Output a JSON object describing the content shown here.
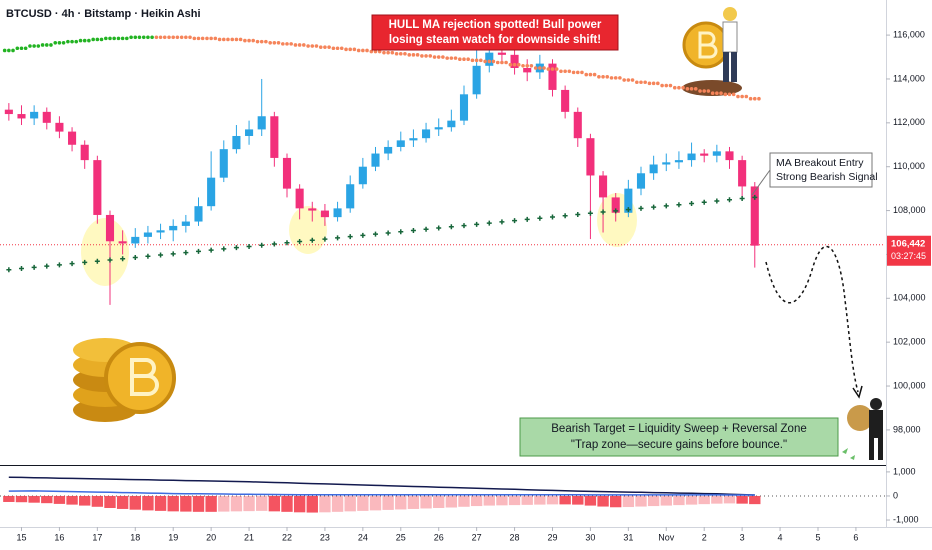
{
  "header": "BTCUSD · 4h · Bitstamp · Heikin Ashi",
  "chart_data": {
    "type": "candlestick",
    "x": [
      1,
      2,
      3,
      4,
      5,
      6,
      7,
      8,
      9,
      10,
      11,
      12,
      13,
      14,
      15,
      16,
      17,
      18,
      19,
      20,
      21,
      22,
      23,
      24,
      25,
      26,
      27,
      28,
      29,
      30,
      31,
      32,
      33,
      34,
      35,
      36,
      37,
      38,
      39,
      40,
      41,
      42,
      43,
      44,
      45,
      46,
      47,
      48,
      49,
      50,
      51,
      52,
      53,
      54,
      55,
      56,
      57,
      58,
      59,
      60
    ],
    "open": [
      112600,
      112400,
      112200,
      112500,
      112000,
      111600,
      111000,
      110300,
      107800,
      106600,
      106500,
      106800,
      107000,
      107100,
      107300,
      107500,
      108200,
      109500,
      110800,
      111400,
      111700,
      112300,
      110400,
      109000,
      108100,
      108000,
      107700,
      108100,
      109200,
      110000,
      110600,
      110900,
      111200,
      111300,
      111700,
      111800,
      112100,
      113300,
      114600,
      115200,
      115100,
      114500,
      114300,
      114700,
      113500,
      112500,
      111300,
      109600,
      108600,
      107900,
      109000,
      109700,
      110100,
      110200,
      110300,
      110600,
      110500,
      110700,
      110300,
      109100
    ],
    "high": [
      112900,
      112800,
      112800,
      112700,
      112300,
      111800,
      111200,
      110500,
      108000,
      107100,
      107200,
      107300,
      107400,
      107600,
      107800,
      108600,
      110700,
      111200,
      111900,
      112100,
      114000,
      112500,
      110600,
      109200,
      108400,
      108300,
      108400,
      109600,
      110400,
      110900,
      111200,
      111600,
      111700,
      112000,
      112200,
      112600,
      113700,
      115800,
      115700,
      115600,
      115400,
      114900,
      115100,
      114900,
      113700,
      112700,
      111500,
      109800,
      108800,
      109400,
      110000,
      110500,
      110600,
      110700,
      111100,
      110800,
      111000,
      110900,
      110500,
      109300
    ],
    "low": [
      112100,
      111900,
      111900,
      111700,
      111300,
      110700,
      109900,
      107400,
      103700,
      106000,
      106300,
      106500,
      106700,
      106600,
      107000,
      107300,
      108000,
      109300,
      110600,
      111000,
      111400,
      110000,
      108600,
      107600,
      107500,
      107300,
      107500,
      107900,
      109000,
      109800,
      110300,
      110700,
      110900,
      111100,
      111400,
      111600,
      111900,
      113100,
      114300,
      114700,
      114200,
      113900,
      114000,
      113200,
      112200,
      110900,
      106700,
      107000,
      107500,
      107700,
      108700,
      109400,
      109800,
      109900,
      110000,
      110200,
      110200,
      109900,
      108600,
      105400
    ],
    "close": [
      112400,
      112200,
      112500,
      112000,
      111600,
      111000,
      110300,
      107800,
      106600,
      106500,
      106800,
      107000,
      107100,
      107300,
      107500,
      108200,
      109500,
      110800,
      111400,
      111700,
      112300,
      110400,
      109000,
      108100,
      108000,
      107700,
      108100,
      109200,
      110000,
      110600,
      110900,
      111200,
      111300,
      111700,
      111800,
      112100,
      113300,
      114600,
      115200,
      115100,
      114500,
      114300,
      114700,
      113500,
      112500,
      111300,
      109600,
      108600,
      107900,
      109000,
      109700,
      110100,
      110200,
      110300,
      110600,
      110500,
      110700,
      110300,
      109100,
      106400
    ],
    "up_color": "#2aa4e4",
    "down_color": "#f2307b",
    "xlim": [
      0.3,
      70.3
    ],
    "xticks": [
      {
        "value": 2,
        "label": "15"
      },
      {
        "value": 5,
        "label": "16"
      },
      {
        "value": 8,
        "label": "17"
      },
      {
        "value": 11,
        "label": "18"
      },
      {
        "value": 14,
        "label": "19"
      },
      {
        "value": 17,
        "label": "20"
      },
      {
        "value": 20,
        "label": "21"
      },
      {
        "value": 23,
        "label": "22"
      },
      {
        "value": 26,
        "label": "23"
      },
      {
        "value": 29,
        "label": "24"
      },
      {
        "value": 32,
        "label": "25"
      },
      {
        "value": 35,
        "label": "26"
      },
      {
        "value": 38,
        "label": "27"
      },
      {
        "value": 41,
        "label": "28"
      },
      {
        "value": 44,
        "label": "29"
      },
      {
        "value": 47,
        "label": "30"
      },
      {
        "value": 50,
        "label": "31"
      },
      {
        "value": 53,
        "label": "Nov"
      },
      {
        "value": 56,
        "label": "2"
      },
      {
        "value": 59,
        "label": "3"
      },
      {
        "value": 62,
        "label": "4"
      },
      {
        "value": 65,
        "label": "5"
      },
      {
        "value": 68,
        "label": "6"
      }
    ],
    "ylim": [
      96400,
      117600
    ],
    "yticks": [
      {
        "value": 98000,
        "label": "98,000"
      },
      {
        "value": 100000,
        "label": "100,000"
      },
      {
        "value": 102000,
        "label": "102,000"
      },
      {
        "value": 104000,
        "label": "104,000"
      },
      {
        "value": 106000,
        "label": "106,000"
      },
      {
        "value": 108000,
        "label": "108,000"
      },
      {
        "value": 110000,
        "label": "110,000"
      },
      {
        "value": 112000,
        "label": "112,000"
      },
      {
        "value": 114000,
        "label": "114,000"
      },
      {
        "value": 116000,
        "label": "116,000"
      }
    ],
    "grid": false,
    "series": [
      {
        "color": "#22b322",
        "marker": "dot",
        "values": [
          115300,
          115400,
          115500,
          115550,
          115650,
          115700,
          115750,
          115800,
          115850,
          115850,
          115900,
          115900,
          null,
          null,
          null,
          null,
          null,
          null,
          null,
          null,
          null,
          null,
          null,
          null,
          null,
          null,
          null,
          null,
          null,
          null,
          null,
          null,
          null,
          null,
          null,
          null,
          null,
          null,
          null,
          null,
          null,
          null,
          null,
          null,
          null,
          null,
          null,
          null,
          null,
          null,
          null,
          null,
          null,
          null,
          null,
          null,
          null,
          null,
          null,
          null
        ]
      },
      {
        "color": "#f5845a",
        "marker": "dot",
        "values": [
          null,
          null,
          null,
          null,
          null,
          null,
          null,
          null,
          null,
          null,
          null,
          null,
          115900,
          115900,
          115900,
          115850,
          115850,
          115800,
          115800,
          115750,
          115700,
          115650,
          115600,
          115550,
          115500,
          115450,
          115400,
          115350,
          115300,
          115250,
          115200,
          115150,
          115100,
          115050,
          115000,
          114950,
          114900,
          114850,
          114800,
          114750,
          114650,
          114600,
          114500,
          114450,
          114350,
          114300,
          114200,
          114100,
          114050,
          113950,
          113850,
          113800,
          113700,
          113600,
          113550,
          113450,
          113350,
          113300,
          113200,
          113100
        ]
      },
      {
        "color": "#17663a",
        "marker": "cross",
        "values": [
          105300,
          105356,
          105412,
          105468,
          105524,
          105580,
          105636,
          105692,
          105748,
          105804,
          105860,
          105916,
          105972,
          106028,
          106084,
          106140,
          106196,
          106252,
          106308,
          106364,
          106420,
          106476,
          106532,
          106588,
          106644,
          106700,
          106756,
          106812,
          106868,
          106924,
          106980,
          107036,
          107092,
          107148,
          107204,
          107260,
          107316,
          107372,
          107428,
          107484,
          107540,
          107596,
          107652,
          107708,
          107764,
          107820,
          107876,
          107932,
          107988,
          108044,
          108100,
          108156,
          108212,
          108268,
          108324,
          108380,
          108436,
          108492,
          108548,
          108604
        ]
      }
    ],
    "last_price": {
      "value": 106442,
      "label": "106,442"
    },
    "last_price_color": "#f23645",
    "countdown": "03:27:45",
    "annotations": {
      "hull": [
        "HULL MA rejection spotted! Bull power",
        "losing steam watch for downside shift!"
      ],
      "entry": [
        "MA Breakout Entry",
        "Strong Bearish Signal"
      ],
      "target": [
        "Bearish Target = Liquidity Sweep + Reversal Zone",
        "\"Trap zone—secure gains before bounce.\""
      ]
    },
    "oscillator": {
      "ylim": [
        -1290,
        1245
      ],
      "yticks": [
        {
          "value": 1000,
          "label": "1,000"
        },
        0,
        {
          "value": -1000,
          "label": "-1,000"
        }
      ],
      "histogram_color": "#f23645",
      "histogram": [
        -250,
        -260,
        -280,
        -300,
        -330,
        -360,
        -400,
        -450,
        -500,
        -540,
        -570,
        -600,
        -620,
        -640,
        -650,
        -660,
        -660,
        -650,
        -640,
        -630,
        -620,
        -640,
        -660,
        -680,
        -690,
        -680,
        -660,
        -640,
        -620,
        -600,
        -580,
        -560,
        -540,
        -520,
        -500,
        -480,
        -450,
        -420,
        -400,
        -390,
        -380,
        -370,
        -360,
        -350,
        -350,
        -360,
        -400,
        -440,
        -470,
        -460,
        -440,
        -420,
        -400,
        -380,
        -360,
        -340,
        -320,
        -310,
        -320,
        -340
      ],
      "lines": [
        {
          "color": "#131a4f",
          "values": [
            780,
            770,
            760,
            750,
            740,
            730,
            720,
            710,
            700,
            690,
            680,
            670,
            660,
            650,
            640,
            630,
            620,
            610,
            600,
            590,
            575,
            560,
            545,
            530,
            515,
            500,
            485,
            470,
            455,
            440,
            425,
            410,
            395,
            380,
            365,
            350,
            335,
            320,
            305,
            290,
            275,
            260,
            245,
            230,
            215,
            200,
            190,
            180,
            170,
            160,
            150,
            140,
            130,
            120,
            110,
            100,
            90,
            70,
            55,
            40
          ]
        },
        {
          "color": "#3d6be0",
          "values": [
            200,
            205,
            210,
            200,
            190,
            180,
            170,
            160,
            150,
            140,
            130,
            120,
            110,
            100,
            95,
            90,
            85,
            80,
            75,
            70,
            65,
            60,
            55,
            50,
            50,
            50,
            50,
            50,
            50,
            50,
            50,
            50,
            50,
            50,
            50,
            50,
            50,
            50,
            50,
            50,
            50,
            50,
            50,
            50,
            50,
            50,
            45,
            45,
            45,
            45,
            45,
            45,
            45,
            45,
            45,
            45,
            45,
            40,
            40,
            40
          ]
        }
      ]
    }
  }
}
